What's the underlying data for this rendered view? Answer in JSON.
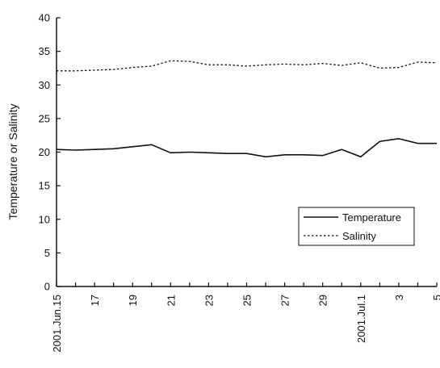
{
  "chart_data": {
    "type": "line",
    "title": "",
    "xlabel": "",
    "ylabel": "Temperature or Salinity",
    "ylim": [
      0,
      40
    ],
    "y_ticks": [
      "0",
      "5",
      "10",
      "15",
      "20",
      "25",
      "30",
      "35",
      "40"
    ],
    "x": [
      "2001-06-15",
      "2001-06-16",
      "2001-06-17",
      "2001-06-18",
      "2001-06-19",
      "2001-06-20",
      "2001-06-21",
      "2001-06-22",
      "2001-06-23",
      "2001-06-24",
      "2001-06-25",
      "2001-06-26",
      "2001-06-27",
      "2001-06-28",
      "2001-06-29",
      "2001-06-30",
      "2001-07-01",
      "2001-07-02",
      "2001-07-03",
      "2001-07-04",
      "2001-07-05"
    ],
    "x_tick_labels": [
      "2001.Jun.15",
      "17",
      "19",
      "21",
      "23",
      "25",
      "27",
      "29",
      "2001.Jul.1",
      "3",
      "5"
    ],
    "series": [
      {
        "name": "Temperature",
        "style": "solid",
        "values": [
          20.4,
          20.3,
          20.4,
          20.5,
          20.8,
          21.1,
          19.9,
          20.0,
          19.9,
          19.8,
          19.8,
          19.3,
          19.6,
          19.6,
          19.5,
          20.4,
          19.3,
          21.6,
          22.0,
          21.3,
          21.3
        ]
      },
      {
        "name": "Salinity",
        "style": "dotted",
        "values": [
          32.1,
          32.1,
          32.2,
          32.3,
          32.6,
          32.8,
          33.6,
          33.5,
          33.0,
          33.0,
          32.8,
          33.0,
          33.1,
          33.0,
          33.2,
          32.9,
          33.3,
          32.5,
          32.6,
          33.4,
          33.3
        ]
      }
    ],
    "grid": false,
    "legend_position": "right-middle",
    "colors": {
      "line": "#111111",
      "background": "#ffffff"
    }
  }
}
